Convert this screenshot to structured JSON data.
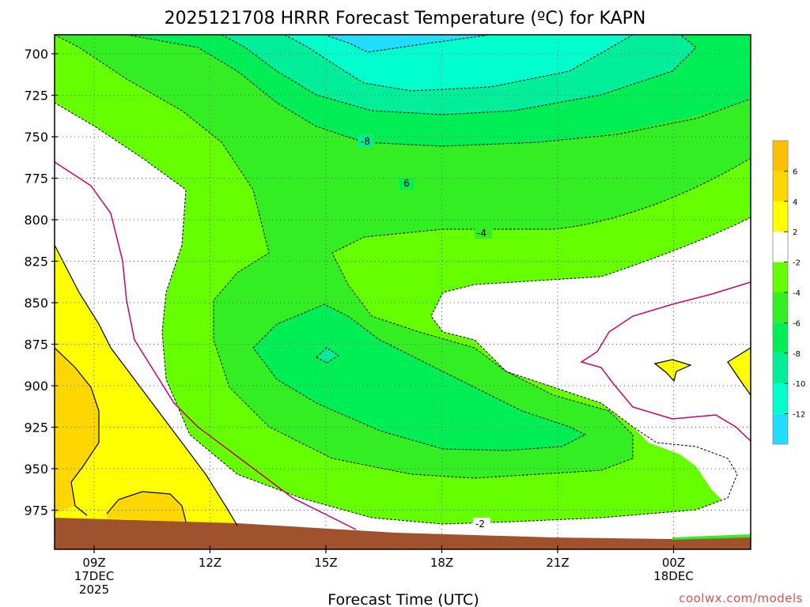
{
  "title": "2025121708 HRRR Forecast Temperature (ºC) for KAPN",
  "credit": "coolwx.com/models",
  "chart_data": {
    "type": "contour",
    "title": "2025121708 HRRR Forecast Temperature (ºC) for KAPN",
    "xlabel": "Forecast Time (UTC)",
    "ylabel": "",
    "y_axis": {
      "ticks": [
        "700",
        "725",
        "750",
        "775",
        "800",
        "825",
        "850",
        "875",
        "900",
        "925",
        "950",
        "975"
      ],
      "range": [
        690,
        990
      ],
      "inverted": true
    },
    "x_axis": {
      "ticks": [
        {
          "label": "09Z",
          "date": "17DEC",
          "year": "2025"
        },
        {
          "label": "12Z",
          "date": "",
          "year": ""
        },
        {
          "label": "15Z",
          "date": "",
          "year": ""
        },
        {
          "label": "18Z",
          "date": "",
          "year": ""
        },
        {
          "label": "21Z",
          "date": "",
          "year": ""
        },
        {
          "label": "00Z",
          "date": "18DEC",
          "year": ""
        }
      ]
    },
    "contour_labels": [
      "-8",
      "6",
      "-4",
      "-2"
    ],
    "colorbar": {
      "labels": [
        "6",
        "4",
        "2",
        "-2",
        "-4",
        "-6",
        "-8",
        "-10",
        "-12"
      ],
      "colors": {
        "4_to_6": "#ffc000",
        "2_to_4": "#ffd700",
        "0_to_2": "#ffff00",
        "m2_to_0": "#ffffff",
        "m4_to_m2": "#66ff00",
        "m6_to_m4": "#33ee22",
        "m8_to_m6": "#00ee55",
        "m10_to_m8": "#00ee99",
        "m12_to_m10": "#00ffcc",
        "below_m12": "#22ddff"
      }
    },
    "line_colors": {
      "zero_isotherm": "#c8006e",
      "dashed": "#000000",
      "ground": "#a0522d"
    }
  }
}
